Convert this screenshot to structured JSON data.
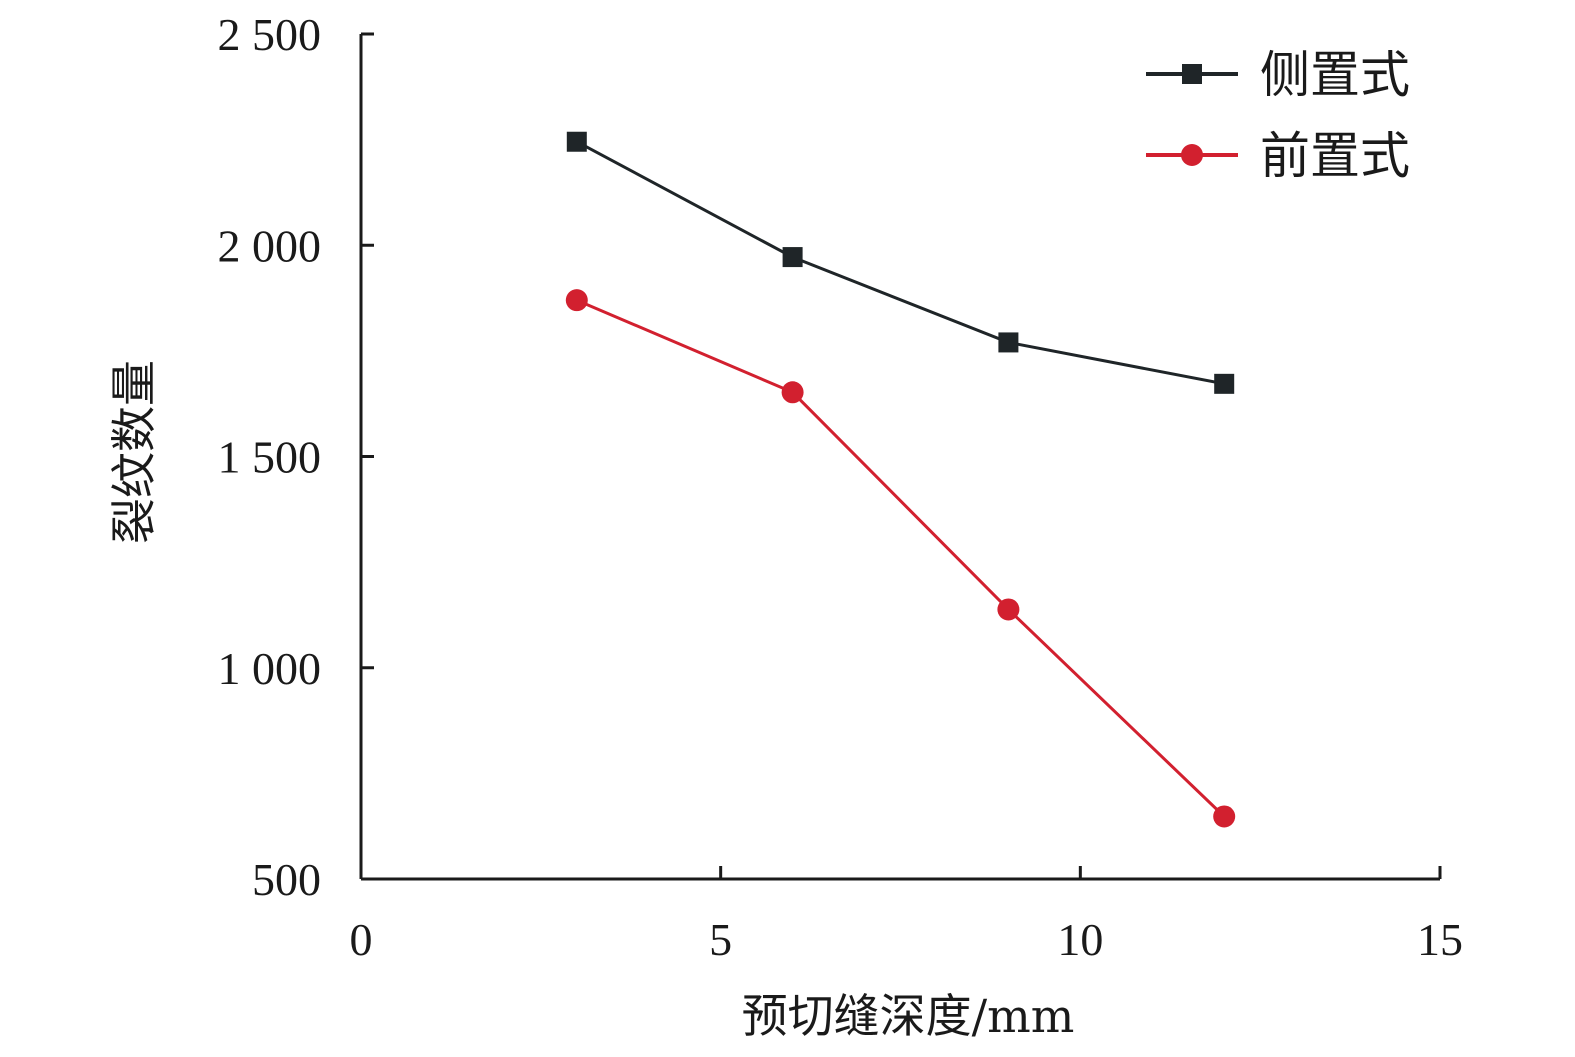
{
  "chart_data": {
    "type": "line",
    "title": "",
    "xlabel": "预切缝深度/mm",
    "ylabel": "裂纹数量",
    "xlim": [
      0,
      15
    ],
    "ylim": [
      500,
      2500
    ],
    "xticks": [
      {
        "value": 0,
        "label": "0"
      },
      {
        "value": 5,
        "label": "5"
      },
      {
        "value": 10,
        "label": "10"
      },
      {
        "value": 15,
        "label": "15"
      }
    ],
    "yticks": [
      {
        "value": 500,
        "label": "500"
      },
      {
        "value": 1000,
        "label": "1 000"
      },
      {
        "value": 1500,
        "label": "1 500"
      },
      {
        "value": 2000,
        "label": "2 000"
      },
      {
        "value": 2500,
        "label": "2 500"
      }
    ],
    "grid": false,
    "legend_position": "top-right",
    "x": [
      3,
      6,
      9,
      12
    ],
    "series": [
      {
        "name": "侧置式",
        "values": [
          2245,
          1972,
          1770,
          1672
        ],
        "color": "#1f2528",
        "marker": "square"
      },
      {
        "name": "前置式",
        "values": [
          1870,
          1652,
          1138,
          648
        ],
        "color": "#d2202f",
        "marker": "circle"
      }
    ]
  }
}
